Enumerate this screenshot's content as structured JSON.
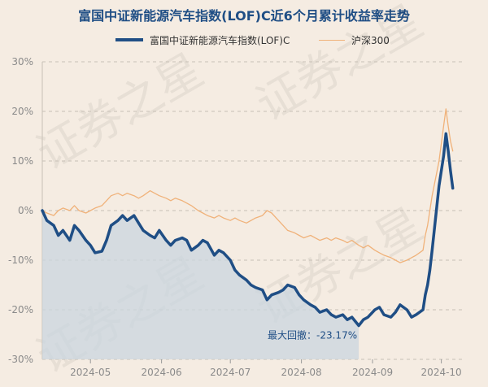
{
  "chart_data": {
    "type": "line",
    "title": "富国中证新能源汽车指数(LOF)C近6个月累计收益率走势",
    "ylim": [
      -30,
      30
    ],
    "y_ticks": [
      "30%",
      "20%",
      "10%",
      "0%",
      "-10%",
      "-20%",
      "-30%"
    ],
    "x_range": [
      "2024-04-10",
      "2024-10-10"
    ],
    "x_ticks": [
      {
        "date": "2024-05-01",
        "label": "2024-05"
      },
      {
        "date": "2024-06-01",
        "label": "2024-06"
      },
      {
        "date": "2024-07-01",
        "label": "2024-07"
      },
      {
        "date": "2024-08-01",
        "label": "2024-08"
      },
      {
        "date": "2024-09-01",
        "label": "2024-09"
      },
      {
        "date": "2024-10-01",
        "label": "2024-10"
      }
    ],
    "legend_position": "top",
    "grid": true,
    "series": [
      {
        "name": "富国中证新能源汽车指数(LOF)C",
        "color": "#1f4e85",
        "points": [
          [
            "2024-04-10",
            0
          ],
          [
            "2024-04-12",
            -2
          ],
          [
            "2024-04-15",
            -3
          ],
          [
            "2024-04-17",
            -5
          ],
          [
            "2024-04-19",
            -4
          ],
          [
            "2024-04-22",
            -6
          ],
          [
            "2024-04-24",
            -3
          ],
          [
            "2024-04-26",
            -4
          ],
          [
            "2024-04-29",
            -6
          ],
          [
            "2024-05-01",
            -7
          ],
          [
            "2024-05-03",
            -8.5
          ],
          [
            "2024-05-06",
            -8.2
          ],
          [
            "2024-05-08",
            -6
          ],
          [
            "2024-05-10",
            -3
          ],
          [
            "2024-05-13",
            -2
          ],
          [
            "2024-05-15",
            -1
          ],
          [
            "2024-05-17",
            -2
          ],
          [
            "2024-05-20",
            -1
          ],
          [
            "2024-05-22",
            -2.5
          ],
          [
            "2024-05-24",
            -4
          ],
          [
            "2024-05-27",
            -5
          ],
          [
            "2024-05-29",
            -5.5
          ],
          [
            "2024-05-31",
            -4
          ],
          [
            "2024-06-03",
            -6
          ],
          [
            "2024-06-05",
            -7
          ],
          [
            "2024-06-07",
            -6
          ],
          [
            "2024-06-10",
            -5.5
          ],
          [
            "2024-06-12",
            -6
          ],
          [
            "2024-06-14",
            -8
          ],
          [
            "2024-06-17",
            -7
          ],
          [
            "2024-06-19",
            -6
          ],
          [
            "2024-06-21",
            -6.5
          ],
          [
            "2024-06-24",
            -9
          ],
          [
            "2024-06-26",
            -8
          ],
          [
            "2024-06-28",
            -8.5
          ],
          [
            "2024-07-01",
            -10
          ],
          [
            "2024-07-03",
            -12
          ],
          [
            "2024-07-05",
            -13
          ],
          [
            "2024-07-08",
            -14
          ],
          [
            "2024-07-10",
            -15
          ],
          [
            "2024-07-12",
            -15.5
          ],
          [
            "2024-07-15",
            -16
          ],
          [
            "2024-07-17",
            -18
          ],
          [
            "2024-07-19",
            -17
          ],
          [
            "2024-07-22",
            -16.5
          ],
          [
            "2024-07-24",
            -16
          ],
          [
            "2024-07-26",
            -15
          ],
          [
            "2024-07-29",
            -15.5
          ],
          [
            "2024-07-31",
            -17
          ],
          [
            "2024-08-02",
            -18
          ],
          [
            "2024-08-05",
            -19
          ],
          [
            "2024-08-07",
            -19.5
          ],
          [
            "2024-08-09",
            -20.5
          ],
          [
            "2024-08-12",
            -20
          ],
          [
            "2024-08-14",
            -21
          ],
          [
            "2024-08-16",
            -21.5
          ],
          [
            "2024-08-19",
            -21
          ],
          [
            "2024-08-21",
            -22
          ],
          [
            "2024-08-23",
            -21.5
          ],
          [
            "2024-08-26",
            -23.2
          ],
          [
            "2024-08-28",
            -22
          ],
          [
            "2024-08-30",
            -21.5
          ],
          [
            "2024-09-02",
            -20
          ],
          [
            "2024-09-04",
            -19.5
          ],
          [
            "2024-09-06",
            -21
          ],
          [
            "2024-09-09",
            -21.5
          ],
          [
            "2024-09-11",
            -20.5
          ],
          [
            "2024-09-13",
            -19
          ],
          [
            "2024-09-16",
            -20
          ],
          [
            "2024-09-18",
            -21.5
          ],
          [
            "2024-09-20",
            -21
          ],
          [
            "2024-09-23",
            -20
          ],
          [
            "2024-09-24",
            -17
          ],
          [
            "2024-09-25",
            -15
          ],
          [
            "2024-09-26",
            -12
          ],
          [
            "2024-09-27",
            -8
          ],
          [
            "2024-09-30",
            5
          ],
          [
            "2024-10-02",
            11
          ],
          [
            "2024-10-03",
            15.5
          ],
          [
            "2024-10-04",
            12
          ],
          [
            "2024-10-05",
            8
          ],
          [
            "2024-10-06",
            4.5
          ]
        ]
      },
      {
        "name": "沪深300",
        "color": "#f0b27a",
        "points": [
          [
            "2024-04-10",
            0
          ],
          [
            "2024-04-12",
            -0.5
          ],
          [
            "2024-04-15",
            -1
          ],
          [
            "2024-04-17",
            0
          ],
          [
            "2024-04-19",
            0.5
          ],
          [
            "2024-04-22",
            0
          ],
          [
            "2024-04-24",
            1
          ],
          [
            "2024-04-26",
            0
          ],
          [
            "2024-04-29",
            -0.5
          ],
          [
            "2024-05-01",
            0
          ],
          [
            "2024-05-03",
            0.5
          ],
          [
            "2024-05-06",
            1
          ],
          [
            "2024-05-08",
            2
          ],
          [
            "2024-05-10",
            3
          ],
          [
            "2024-05-13",
            3.5
          ],
          [
            "2024-05-15",
            3
          ],
          [
            "2024-05-17",
            3.5
          ],
          [
            "2024-05-20",
            3
          ],
          [
            "2024-05-22",
            2.5
          ],
          [
            "2024-05-24",
            3
          ],
          [
            "2024-05-27",
            4
          ],
          [
            "2024-05-29",
            3.5
          ],
          [
            "2024-05-31",
            3
          ],
          [
            "2024-06-03",
            2.5
          ],
          [
            "2024-06-05",
            2
          ],
          [
            "2024-06-07",
            2.5
          ],
          [
            "2024-06-10",
            2
          ],
          [
            "2024-06-12",
            1.5
          ],
          [
            "2024-06-14",
            1
          ],
          [
            "2024-06-17",
            0
          ],
          [
            "2024-06-19",
            -0.5
          ],
          [
            "2024-06-21",
            -1
          ],
          [
            "2024-06-24",
            -1.5
          ],
          [
            "2024-06-26",
            -1
          ],
          [
            "2024-06-28",
            -1.5
          ],
          [
            "2024-07-01",
            -2
          ],
          [
            "2024-07-03",
            -1.5
          ],
          [
            "2024-07-05",
            -2
          ],
          [
            "2024-07-08",
            -2.5
          ],
          [
            "2024-07-10",
            -2
          ],
          [
            "2024-07-12",
            -1.5
          ],
          [
            "2024-07-15",
            -1
          ],
          [
            "2024-07-17",
            0
          ],
          [
            "2024-07-19",
            -0.5
          ],
          [
            "2024-07-22",
            -2
          ],
          [
            "2024-07-24",
            -3
          ],
          [
            "2024-07-26",
            -4
          ],
          [
            "2024-07-29",
            -4.5
          ],
          [
            "2024-07-31",
            -5
          ],
          [
            "2024-08-02",
            -5.5
          ],
          [
            "2024-08-05",
            -5
          ],
          [
            "2024-08-07",
            -5.5
          ],
          [
            "2024-08-09",
            -6
          ],
          [
            "2024-08-12",
            -5.5
          ],
          [
            "2024-08-14",
            -6
          ],
          [
            "2024-08-16",
            -5.5
          ],
          [
            "2024-08-19",
            -6
          ],
          [
            "2024-08-21",
            -6.5
          ],
          [
            "2024-08-23",
            -6
          ],
          [
            "2024-08-26",
            -7
          ],
          [
            "2024-08-28",
            -7.5
          ],
          [
            "2024-08-30",
            -7
          ],
          [
            "2024-09-02",
            -8
          ],
          [
            "2024-09-04",
            -8.5
          ],
          [
            "2024-09-06",
            -9
          ],
          [
            "2024-09-09",
            -9.5
          ],
          [
            "2024-09-11",
            -10
          ],
          [
            "2024-09-13",
            -10.5
          ],
          [
            "2024-09-16",
            -10
          ],
          [
            "2024-09-18",
            -9.5
          ],
          [
            "2024-09-20",
            -9
          ],
          [
            "2024-09-23",
            -8
          ],
          [
            "2024-09-24",
            -5
          ],
          [
            "2024-09-25",
            -3
          ],
          [
            "2024-09-26",
            0
          ],
          [
            "2024-09-27",
            3
          ],
          [
            "2024-09-30",
            10
          ],
          [
            "2024-10-02",
            17
          ],
          [
            "2024-10-03",
            20.5
          ],
          [
            "2024-10-04",
            17
          ],
          [
            "2024-10-05",
            14
          ],
          [
            "2024-10-06",
            12
          ]
        ]
      }
    ],
    "drawdown_area": {
      "start": "2024-04-10",
      "end": "2024-08-26"
    },
    "annotation": {
      "text": "最大回撤：-23.17%",
      "date": "2024-08-26",
      "value": -23.17
    }
  },
  "watermark": "证券之星"
}
